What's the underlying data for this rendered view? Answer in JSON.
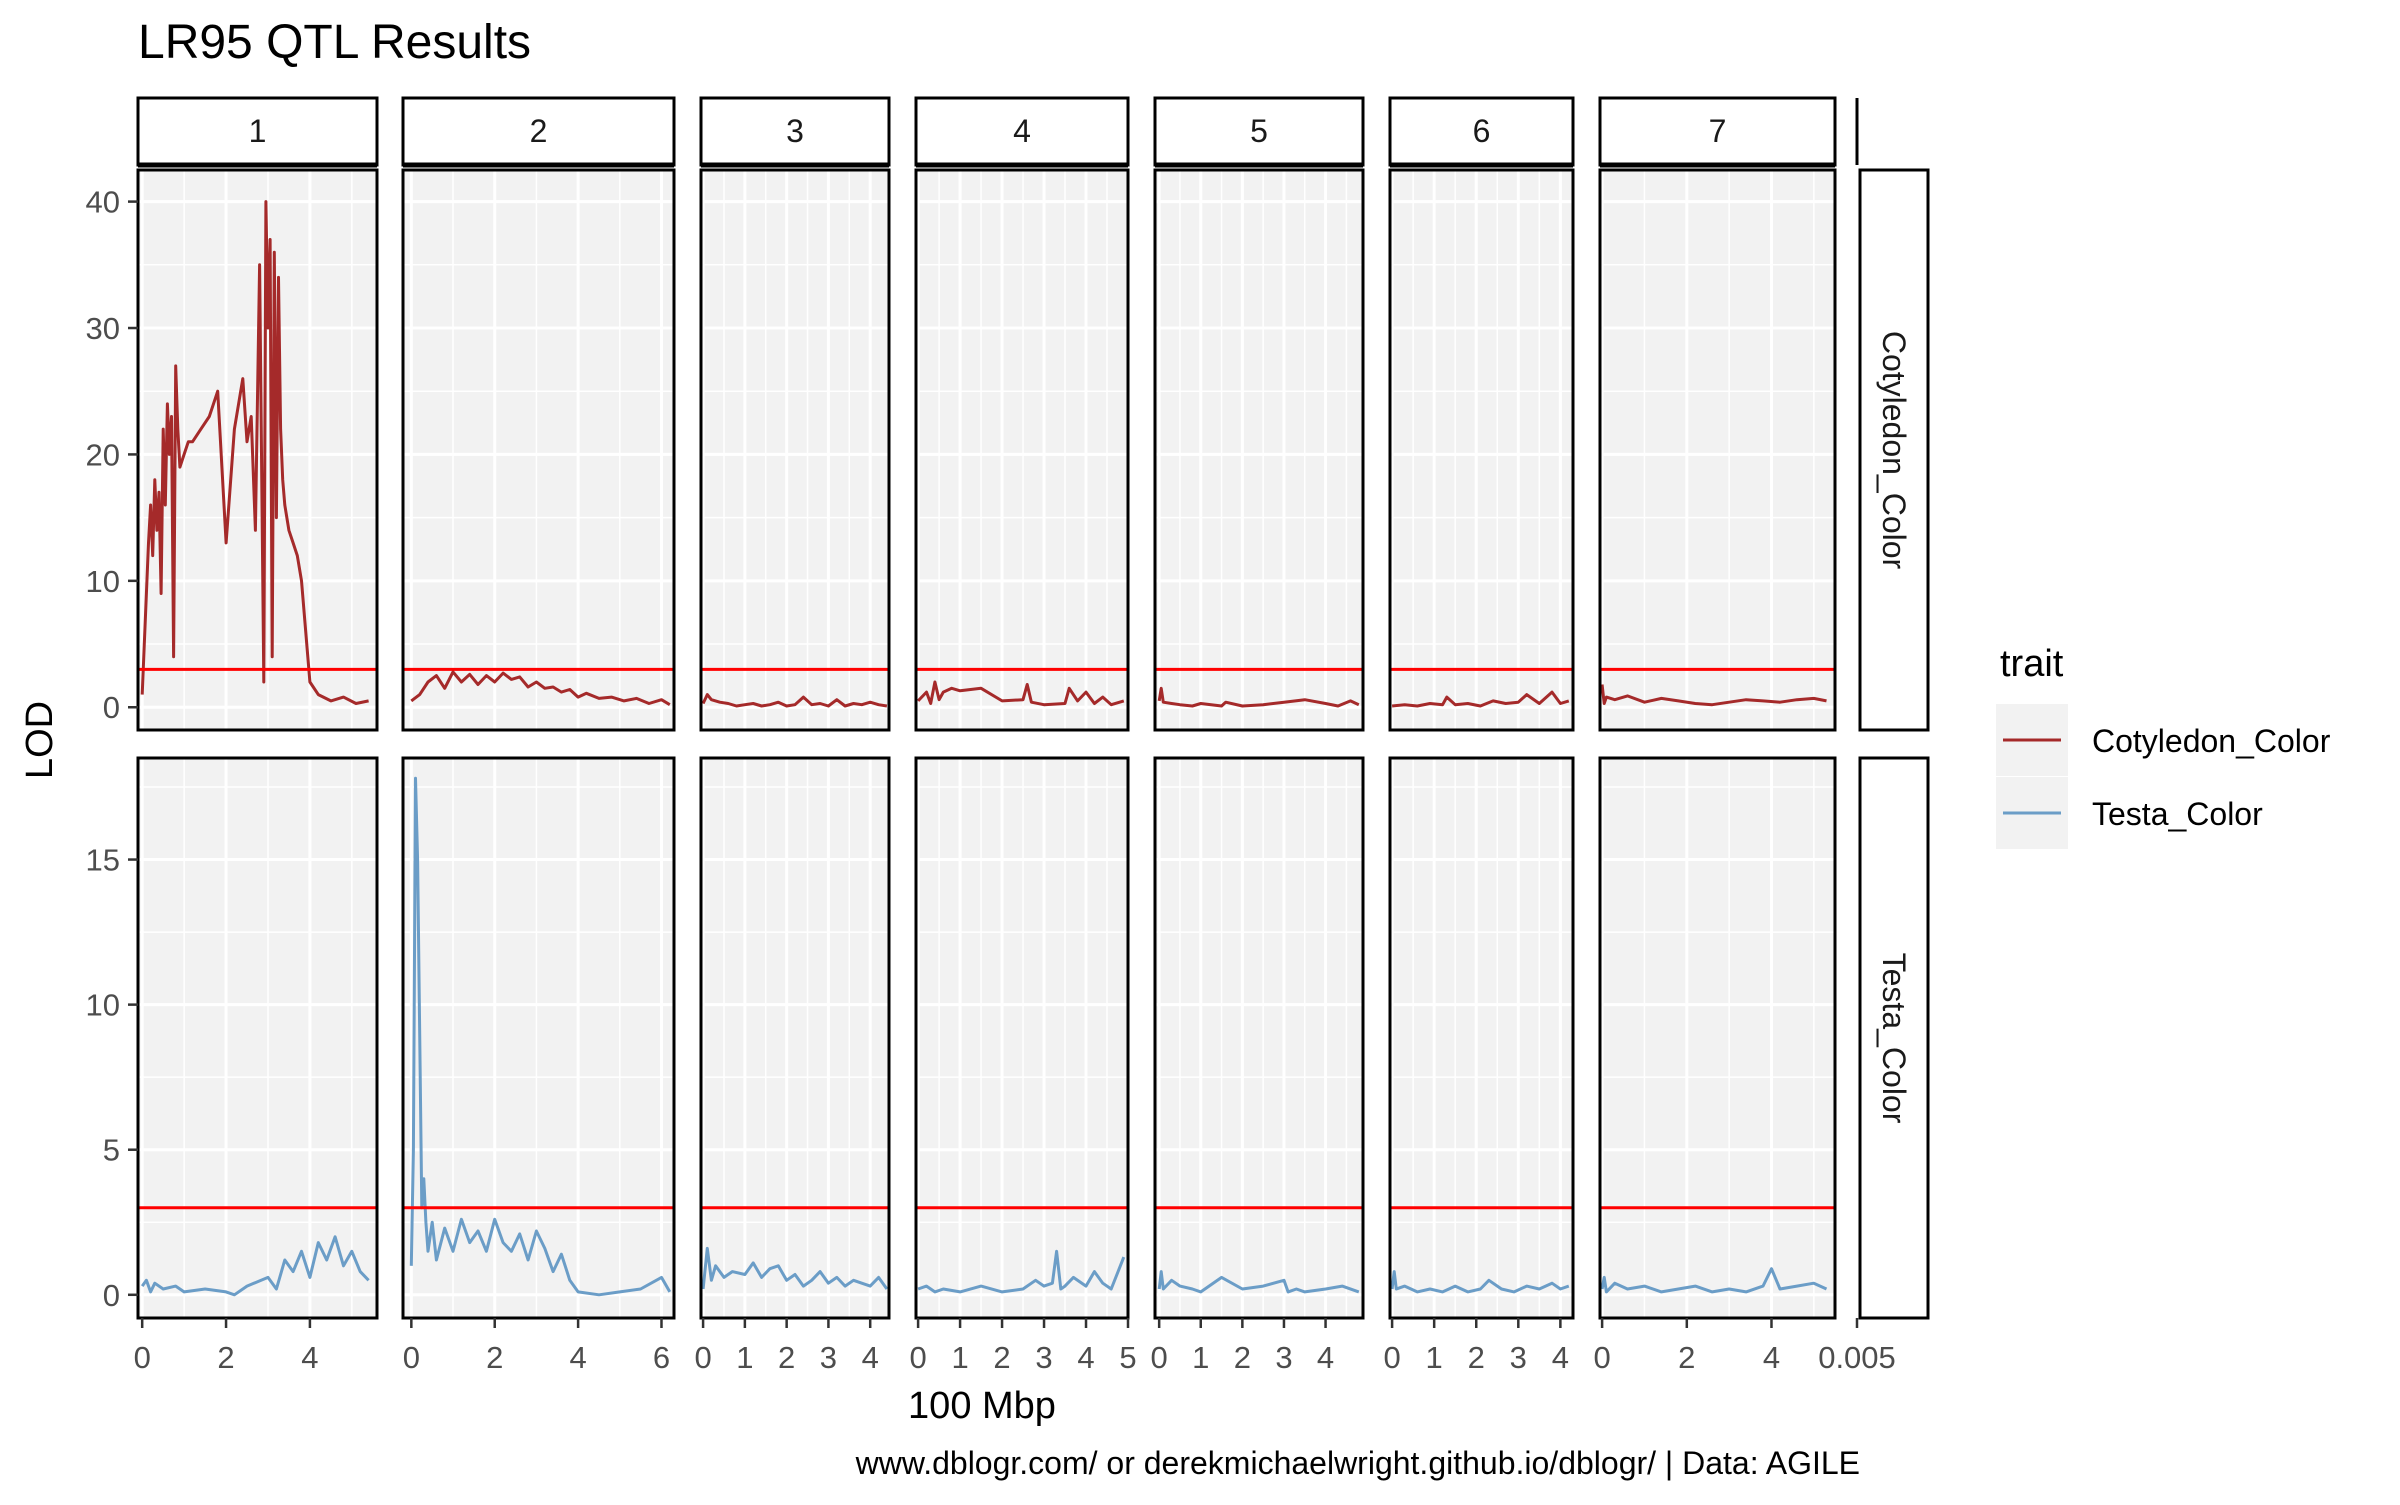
{
  "chart_data": {
    "type": "line",
    "title": "LR95 QTL Results",
    "xlabel": "100 Mbp",
    "ylabel": "LOD",
    "caption": "www.dblogr.com/ or derekmichaelwright.github.io/dblogr/ | Data: AGILE",
    "threshold": 3,
    "legend": {
      "title": "trait",
      "position": "right",
      "entries": [
        "Cotyledon_Color",
        "Testa_Color"
      ]
    },
    "colors": {
      "Cotyledon_Color": "#A52A2A",
      "Testa_Color": "#6B9DC7",
      "threshold": "#FF0000",
      "panel_bg": "#F2F2F2",
      "grid": "#FFFFFF"
    },
    "strip_extra_tick": "0.005",
    "columns": [
      {
        "label": "1",
        "xlim": [
          -0.1,
          5.6
        ],
        "ticks": [
          0,
          2,
          4
        ],
        "tick_labels": [
          "0",
          "2",
          "4"
        ]
      },
      {
        "label": "2",
        "xlim": [
          -0.2,
          6.3
        ],
        "ticks": [
          0,
          2,
          4,
          6
        ],
        "tick_labels": [
          "0",
          "2",
          "4",
          "6"
        ]
      },
      {
        "label": "3",
        "xlim": [
          -0.05,
          4.45
        ],
        "ticks": [
          0,
          1,
          2,
          3,
          4
        ],
        "tick_labels": [
          "0",
          "1",
          "2",
          "3",
          "4"
        ]
      },
      {
        "label": "4",
        "xlim": [
          -0.05,
          5.0
        ],
        "ticks": [
          0,
          1,
          2,
          3,
          4,
          5
        ],
        "tick_labels": [
          "0",
          "1",
          "2",
          "3",
          "4",
          "5"
        ]
      },
      {
        "label": "5",
        "xlim": [
          -0.1,
          4.9
        ],
        "ticks": [
          0,
          1,
          2,
          3,
          4
        ],
        "tick_labels": [
          "0",
          "1",
          "2",
          "3",
          "4"
        ]
      },
      {
        "label": "6",
        "xlim": [
          -0.05,
          4.3
        ],
        "ticks": [
          0,
          1,
          2,
          3,
          4
        ],
        "tick_labels": [
          "0",
          "1",
          "2",
          "3",
          "4"
        ]
      },
      {
        "label": "7",
        "xlim": [
          -0.05,
          5.5
        ],
        "ticks": [
          0,
          2,
          4
        ],
        "tick_labels": [
          "0",
          "2",
          "4"
        ]
      }
    ],
    "rows": [
      {
        "label": "Cotyledon_Color",
        "ylim": [
          -1.8,
          42.5
        ],
        "ticks": [
          0,
          10,
          20,
          30,
          40
        ],
        "tick_labels": [
          "0",
          "10",
          "20",
          "30",
          "40"
        ]
      },
      {
        "label": "Testa_Color",
        "ylim": [
          -0.8,
          18.5
        ],
        "ticks": [
          0,
          5,
          10,
          15
        ],
        "tick_labels": [
          "0",
          "5",
          "10",
          "15"
        ]
      }
    ],
    "series": [
      {
        "name": "Cotyledon_Color",
        "panels": [
          {
            "x": [
              0,
              0.05,
              0.1,
              0.15,
              0.2,
              0.25,
              0.3,
              0.35,
              0.4,
              0.45,
              0.5,
              0.55,
              0.6,
              0.65,
              0.7,
              0.75,
              0.8,
              0.85,
              0.9,
              1.0,
              1.1,
              1.2,
              1.4,
              1.6,
              1.8,
              2.0,
              2.2,
              2.3,
              2.4,
              2.5,
              2.6,
              2.7,
              2.8,
              2.9,
              2.95,
              3.0,
              3.05,
              3.1,
              3.15,
              3.2,
              3.25,
              3.3,
              3.35,
              3.4,
              3.5,
              3.6,
              3.7,
              3.8,
              3.9,
              4.0,
              4.2,
              4.5,
              4.8,
              5.1,
              5.4
            ],
            "y": [
              1,
              5,
              9,
              13,
              16,
              12,
              18,
              14,
              17,
              9,
              22,
              16,
              24,
              20,
              23,
              4,
              27,
              22,
              19,
              20,
              21,
              21,
              22,
              23,
              25,
              13,
              22,
              24,
              26,
              21,
              23,
              14,
              35,
              2,
              40,
              30,
              37,
              4,
              36,
              15,
              34,
              22,
              18,
              16,
              14,
              13,
              12,
              10,
              6,
              2,
              1,
              0.5,
              0.8,
              0.3,
              0.5
            ]
          },
          {
            "x": [
              0,
              0.2,
              0.4,
              0.6,
              0.8,
              1.0,
              1.2,
              1.4,
              1.6,
              1.8,
              2.0,
              2.2,
              2.4,
              2.6,
              2.8,
              3.0,
              3.2,
              3.4,
              3.6,
              3.8,
              4.0,
              4.2,
              4.5,
              4.8,
              5.1,
              5.4,
              5.7,
              6.0,
              6.2
            ],
            "y": [
              0.5,
              1,
              2,
              2.5,
              1.5,
              2.8,
              2,
              2.6,
              1.8,
              2.5,
              2,
              2.7,
              2.2,
              2.4,
              1.6,
              2.0,
              1.5,
              1.6,
              1.2,
              1.4,
              0.8,
              1.1,
              0.7,
              0.8,
              0.5,
              0.7,
              0.3,
              0.6,
              0.2
            ]
          },
          {
            "x": [
              0,
              0.1,
              0.2,
              0.4,
              0.6,
              0.8,
              1.0,
              1.2,
              1.4,
              1.6,
              1.8,
              2.0,
              2.2,
              2.4,
              2.6,
              2.8,
              3.0,
              3.2,
              3.4,
              3.6,
              3.8,
              4.0,
              4.2,
              4.4
            ],
            "y": [
              0.3,
              1,
              0.6,
              0.4,
              0.3,
              0.1,
              0.2,
              0.3,
              0.1,
              0.2,
              0.4,
              0.1,
              0.2,
              0.8,
              0.2,
              0.3,
              0.1,
              0.6,
              0.1,
              0.3,
              0.2,
              0.4,
              0.2,
              0.1
            ]
          },
          {
            "x": [
              0,
              0.2,
              0.3,
              0.4,
              0.5,
              0.6,
              0.8,
              1.0,
              1.5,
              2.0,
              2.5,
              2.6,
              2.7,
              3.0,
              3.5,
              3.6,
              3.8,
              4.0,
              4.2,
              4.4,
              4.6,
              4.9
            ],
            "y": [
              0.5,
              1.2,
              0.3,
              2,
              0.6,
              1.2,
              1.5,
              1.3,
              1.5,
              0.5,
              0.6,
              1.8,
              0.4,
              0.2,
              0.3,
              1.5,
              0.5,
              1.2,
              0.3,
              0.8,
              0.2,
              0.5
            ]
          },
          {
            "x": [
              0,
              0.05,
              0.1,
              0.3,
              0.5,
              0.8,
              1.0,
              1.5,
              1.6,
              2.0,
              2.5,
              3.0,
              3.5,
              4.0,
              4.3,
              4.6,
              4.8
            ],
            "y": [
              0.5,
              1.5,
              0.4,
              0.3,
              0.2,
              0.1,
              0.3,
              0.1,
              0.4,
              0.1,
              0.2,
              0.4,
              0.6,
              0.3,
              0.1,
              0.5,
              0.2
            ]
          },
          {
            "x": [
              0,
              0.3,
              0.6,
              0.9,
              1.2,
              1.3,
              1.5,
              1.8,
              2.1,
              2.4,
              2.7,
              3.0,
              3.2,
              3.5,
              3.8,
              4.0,
              4.2
            ],
            "y": [
              0.1,
              0.2,
              0.1,
              0.3,
              0.2,
              0.8,
              0.2,
              0.3,
              0.1,
              0.5,
              0.3,
              0.4,
              1,
              0.3,
              1.2,
              0.3,
              0.5
            ]
          },
          {
            "x": [
              0,
              0.05,
              0.1,
              0.3,
              0.6,
              1.0,
              1.4,
              1.8,
              2.2,
              2.6,
              3.0,
              3.4,
              3.8,
              4.2,
              4.6,
              5.0,
              5.3
            ],
            "y": [
              1.8,
              0.3,
              0.8,
              0.6,
              0.9,
              0.4,
              0.7,
              0.5,
              0.3,
              0.2,
              0.4,
              0.6,
              0.5,
              0.4,
              0.6,
              0.7,
              0.5
            ]
          }
        ]
      },
      {
        "name": "Testa_Color",
        "panels": [
          {
            "x": [
              0,
              0.1,
              0.2,
              0.3,
              0.5,
              0.8,
              1.0,
              1.5,
              2.0,
              2.2,
              2.5,
              3.0,
              3.2,
              3.4,
              3.6,
              3.8,
              4.0,
              4.2,
              4.4,
              4.6,
              4.8,
              5.0,
              5.2,
              5.4
            ],
            "y": [
              0.3,
              0.5,
              0.1,
              0.4,
              0.2,
              0.3,
              0.1,
              0.2,
              0.1,
              0,
              0.3,
              0.6,
              0.2,
              1.2,
              0.8,
              1.5,
              0.6,
              1.8,
              1.2,
              2,
              1,
              1.5,
              0.8,
              0.5
            ]
          },
          {
            "x": [
              0,
              0.05,
              0.1,
              0.15,
              0.2,
              0.25,
              0.3,
              0.35,
              0.4,
              0.5,
              0.6,
              0.8,
              1.0,
              1.2,
              1.4,
              1.6,
              1.8,
              2.0,
              2.2,
              2.4,
              2.6,
              2.8,
              3.0,
              3.2,
              3.4,
              3.6,
              3.8,
              4.0,
              4.5,
              5.0,
              5.5,
              6.0,
              6.2
            ],
            "y": [
              1,
              5,
              17.8,
              15,
              9,
              3,
              4,
              2.5,
              1.5,
              2.5,
              1.2,
              2.3,
              1.5,
              2.6,
              1.8,
              2.2,
              1.5,
              2.6,
              1.8,
              1.5,
              2.1,
              1.2,
              2.2,
              1.6,
              0.8,
              1.4,
              0.5,
              0.1,
              0,
              0.1,
              0.2,
              0.6,
              0.1
            ]
          },
          {
            "x": [
              0,
              0.1,
              0.2,
              0.3,
              0.5,
              0.7,
              1.0,
              1.2,
              1.4,
              1.6,
              1.8,
              2.0,
              2.2,
              2.4,
              2.6,
              2.8,
              3.0,
              3.2,
              3.4,
              3.6,
              3.8,
              4.0,
              4.2,
              4.4
            ],
            "y": [
              0.2,
              1.6,
              0.5,
              1,
              0.6,
              0.8,
              0.7,
              1.1,
              0.6,
              0.9,
              1,
              0.5,
              0.7,
              0.3,
              0.5,
              0.8,
              0.4,
              0.6,
              0.3,
              0.5,
              0.4,
              0.3,
              0.6,
              0.2
            ]
          },
          {
            "x": [
              0,
              0.2,
              0.4,
              0.6,
              1.0,
              1.5,
              2.0,
              2.5,
              2.8,
              3.0,
              3.2,
              3.3,
              3.4,
              3.5,
              3.7,
              4.0,
              4.2,
              4.4,
              4.6,
              4.9
            ],
            "y": [
              0.2,
              0.3,
              0.1,
              0.2,
              0.1,
              0.3,
              0.1,
              0.2,
              0.5,
              0.3,
              0.4,
              1.5,
              0.2,
              0.3,
              0.6,
              0.3,
              0.8,
              0.4,
              0.2,
              1.3
            ]
          },
          {
            "x": [
              0,
              0.05,
              0.1,
              0.3,
              0.5,
              0.8,
              1.0,
              1.5,
              2.0,
              2.5,
              3.0,
              3.1,
              3.3,
              3.5,
              4.0,
              4.4,
              4.8
            ],
            "y": [
              0.2,
              0.8,
              0.2,
              0.5,
              0.3,
              0.2,
              0.1,
              0.6,
              0.2,
              0.3,
              0.5,
              0.1,
              0.2,
              0.1,
              0.2,
              0.3,
              0.1
            ]
          },
          {
            "x": [
              0,
              0.05,
              0.1,
              0.3,
              0.6,
              0.9,
              1.2,
              1.5,
              1.8,
              2.1,
              2.3,
              2.6,
              2.9,
              3.2,
              3.5,
              3.8,
              4.0,
              4.2
            ],
            "y": [
              0.2,
              0.8,
              0.2,
              0.3,
              0.1,
              0.2,
              0.1,
              0.3,
              0.1,
              0.2,
              0.5,
              0.2,
              0.1,
              0.3,
              0.2,
              0.4,
              0.2,
              0.3
            ]
          },
          {
            "x": [
              0,
              0.05,
              0.1,
              0.3,
              0.6,
              1.0,
              1.4,
              1.8,
              2.2,
              2.6,
              3.0,
              3.4,
              3.8,
              4.0,
              4.2,
              4.6,
              5.0,
              5.3
            ],
            "y": [
              0.2,
              0.6,
              0.1,
              0.4,
              0.2,
              0.3,
              0.1,
              0.2,
              0.3,
              0.1,
              0.2,
              0.1,
              0.3,
              0.9,
              0.2,
              0.3,
              0.4,
              0.2
            ]
          }
        ]
      }
    ]
  }
}
